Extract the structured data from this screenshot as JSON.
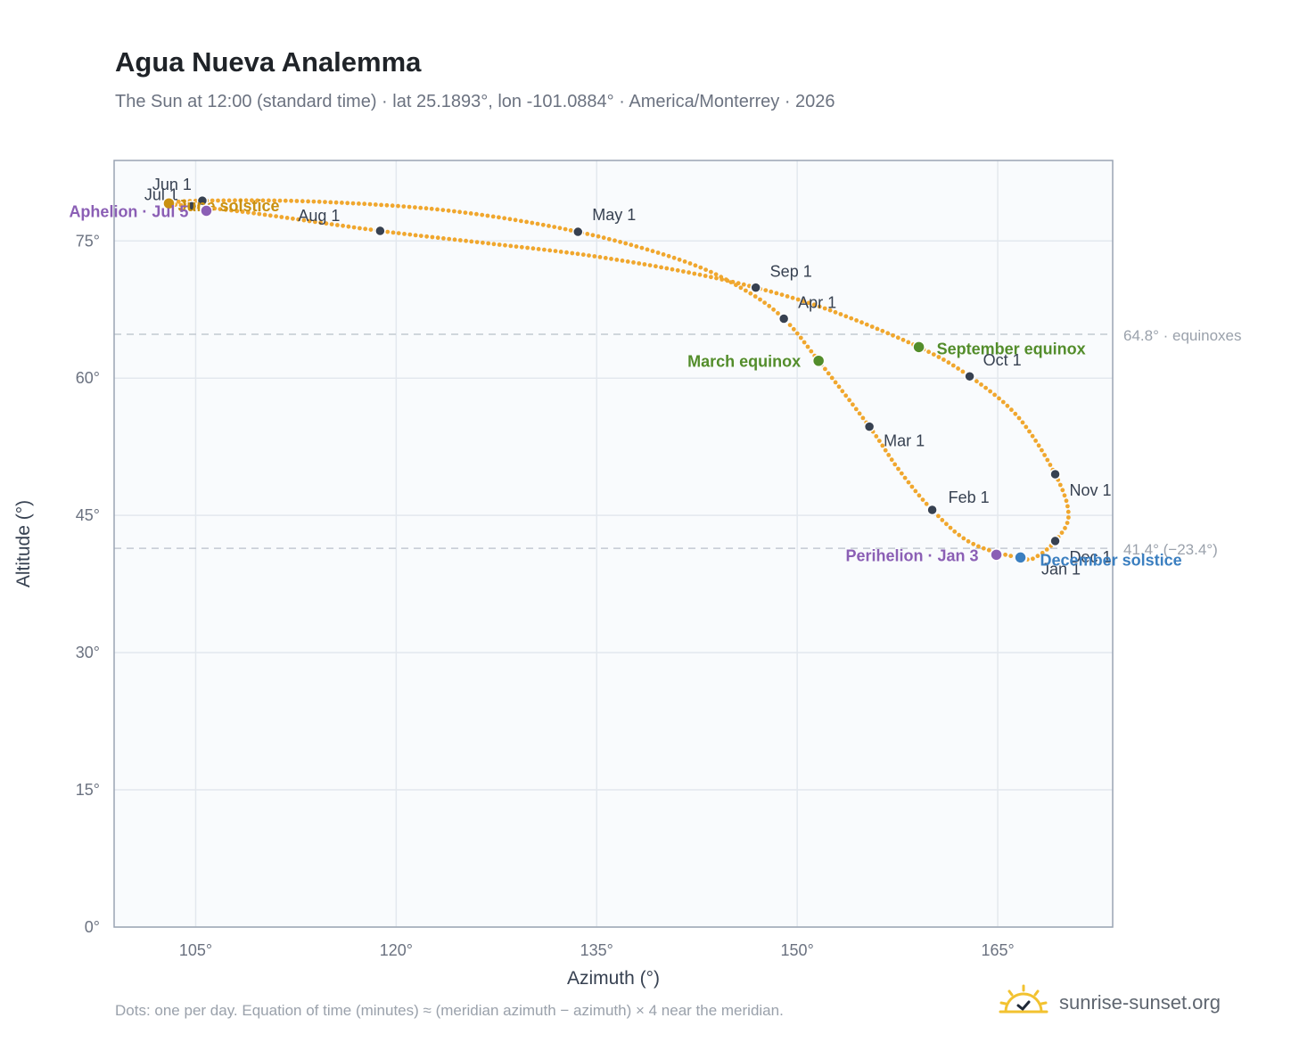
{
  "header": {
    "title": "Agua Nueva Analemma",
    "subtitle": "The Sun at 12:00 (standard time) · lat 25.1893°, lon -101.0884° · America/Monterrey · 2026"
  },
  "footer": {
    "note": "Dots: one per day. Equation of time (minutes) ≈ (meridian azimuth − azimuth) × 4 near the meridian.",
    "brand": "sunrise-sunset.org"
  },
  "colors": {
    "path": "#f0a72e",
    "month_dot": "#374151",
    "equinox": "#538d2b",
    "solstice_june": "#c99010",
    "solstice_december": "#3b7fc0",
    "apsis": "#8b5fb5",
    "reference_line": "#c3c9d2",
    "plot_bg": "#f9fbfd",
    "grid": "#e3e8ee",
    "frame": "#9aa4b4"
  },
  "chart_data": {
    "type": "scatter",
    "xlabel": "Azimuth (°)",
    "ylabel": "Altitude (°)",
    "xlim": [
      98.9,
      173.6
    ],
    "ylim": [
      0,
      83.8
    ],
    "xticks": [
      105,
      120,
      135,
      150,
      165
    ],
    "yticks": [
      0,
      15,
      30,
      45,
      60,
      75
    ],
    "tick_suffix": "°",
    "grid": true,
    "series": [],
    "month_points": [
      {
        "label": "Jan 1",
        "x": 166.8,
        "y": 40.3
      },
      {
        "label": "Feb 1",
        "x": 160.1,
        "y": 45.6
      },
      {
        "label": "Mar 1",
        "x": 155.4,
        "y": 54.7
      },
      {
        "label": "Apr 1",
        "x": 149.0,
        "y": 66.5
      },
      {
        "label": "May 1",
        "x": 133.6,
        "y": 76.0
      },
      {
        "label": "Jun 1",
        "x": 105.5,
        "y": 79.4
      },
      {
        "label": "Jul 1",
        "x": 104.7,
        "y": 78.8
      },
      {
        "label": "Aug 1",
        "x": 118.8,
        "y": 76.1
      },
      {
        "label": "Sep 1",
        "x": 146.9,
        "y": 69.9
      },
      {
        "label": "Oct 1",
        "x": 162.9,
        "y": 60.2
      },
      {
        "label": "Nov 1",
        "x": 169.3,
        "y": 49.5
      },
      {
        "label": "Dec 1",
        "x": 169.3,
        "y": 42.2
      }
    ],
    "special_points": [
      {
        "label": "March equinox",
        "x": 151.6,
        "y": 61.9,
        "kind": "equinox"
      },
      {
        "label": "June solstice",
        "x": 103.0,
        "y": 79.1,
        "kind": "solstice_june"
      },
      {
        "label": "September equinox",
        "x": 159.1,
        "y": 63.4,
        "kind": "equinox"
      },
      {
        "label": "December solstice",
        "x": 166.7,
        "y": 40.4,
        "kind": "solstice_december"
      },
      {
        "label": "Perihelion · Jan 3",
        "x": 164.9,
        "y": 40.7,
        "kind": "apsis"
      },
      {
        "label": "Aphelion · Jul 5",
        "x": 105.8,
        "y": 78.3,
        "kind": "apsis"
      }
    ],
    "reference_lines": [
      {
        "y": 64.8,
        "label": "64.8° · equinoxes"
      },
      {
        "y": 41.4,
        "label": "41.4° (−23.4°)"
      }
    ],
    "path_waypoints": [
      [
        166.8,
        40.3
      ],
      [
        163.0,
        42.0
      ],
      [
        160.1,
        45.6
      ],
      [
        157.6,
        50.0
      ],
      [
        155.4,
        54.7
      ],
      [
        151.6,
        61.9
      ],
      [
        149.0,
        66.5
      ],
      [
        146.0,
        69.7
      ],
      [
        141.5,
        72.8
      ],
      [
        133.6,
        76.0
      ],
      [
        124.0,
        78.3
      ],
      [
        114.0,
        79.3
      ],
      [
        105.5,
        79.4
      ],
      [
        103.0,
        79.1
      ],
      [
        104.7,
        78.8
      ],
      [
        109.0,
        78.1
      ],
      [
        118.8,
        76.1
      ],
      [
        126.5,
        74.8
      ],
      [
        134.0,
        73.5
      ],
      [
        141.0,
        71.8
      ],
      [
        146.9,
        69.9
      ],
      [
        152.5,
        67.4
      ],
      [
        159.1,
        63.4
      ],
      [
        162.9,
        60.2
      ],
      [
        166.5,
        55.8
      ],
      [
        169.3,
        49.5
      ],
      [
        170.3,
        45.0
      ],
      [
        169.3,
        42.2
      ],
      [
        167.9,
        40.5
      ],
      [
        166.8,
        40.3
      ]
    ]
  }
}
